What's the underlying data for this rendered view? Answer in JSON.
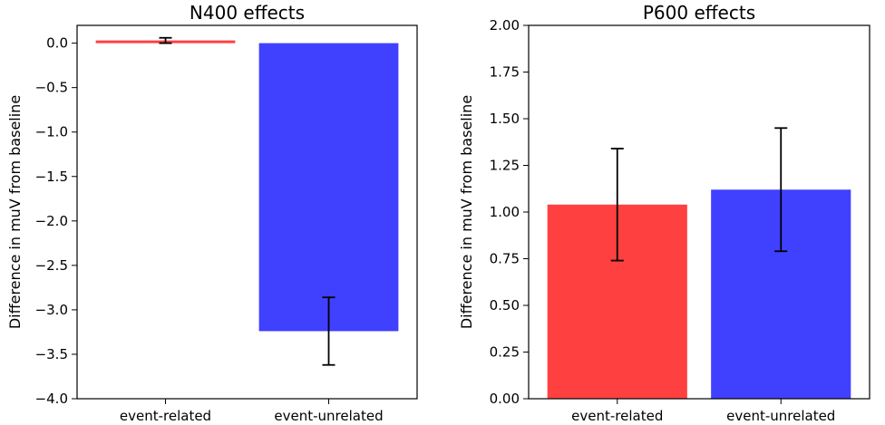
{
  "chart_data": [
    {
      "type": "bar",
      "title": "N400 effects",
      "xlabel": "",
      "ylabel": "Difference in muV from baseline",
      "ylim": [
        -4.0,
        0.2
      ],
      "yticks": [
        0.0,
        -0.5,
        -1.0,
        -1.5,
        -2.0,
        -2.5,
        -3.0,
        -3.5,
        -4.0
      ],
      "ytick_labels": [
        "0.0",
        "−0.5",
        "−1.0",
        "−1.5",
        "−2.0",
        "−2.5",
        "−3.0",
        "−3.5",
        "−4.0"
      ],
      "categories": [
        "event-related",
        "event-unrelated"
      ],
      "values": [
        0.03,
        -3.24
      ],
      "errors": [
        0.03,
        0.38
      ],
      "colors": [
        "#ff4040",
        "#4040ff"
      ]
    },
    {
      "type": "bar",
      "title": "P600 effects",
      "xlabel": "",
      "ylabel": "Difference in muV from baseline",
      "ylim": [
        0.0,
        2.0
      ],
      "yticks": [
        0.0,
        0.25,
        0.5,
        0.75,
        1.0,
        1.25,
        1.5,
        1.75,
        2.0
      ],
      "ytick_labels": [
        "0.00",
        "0.25",
        "0.50",
        "0.75",
        "1.00",
        "1.25",
        "1.50",
        "1.75",
        "2.00"
      ],
      "categories": [
        "event-related",
        "event-unrelated"
      ],
      "values": [
        1.04,
        1.12
      ],
      "errors": [
        0.3,
        0.33
      ],
      "colors": [
        "#ff4040",
        "#4040ff"
      ]
    }
  ]
}
